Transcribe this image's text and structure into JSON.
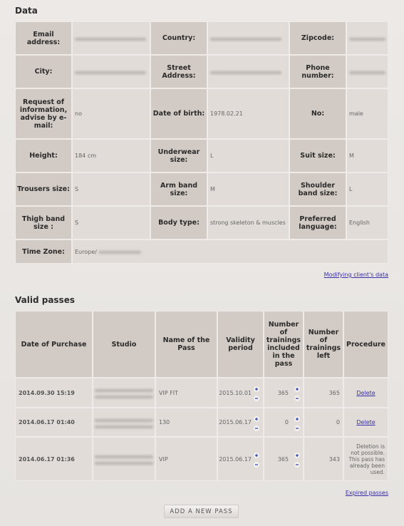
{
  "client_data": {
    "title": "Data",
    "rows": [
      [
        {
          "label": "Email address:"
        },
        {
          "label": "Country:"
        },
        {
          "label": "Zipcode:"
        }
      ],
      [
        {
          "label": "City:"
        },
        {
          "label": "Street Address:"
        },
        {
          "label": "Phone number:"
        }
      ],
      [
        {
          "label": "Request of information, advise by e-mail:",
          "value": "no"
        },
        {
          "label": "Date of birth:",
          "value": "1978.02.21"
        },
        {
          "label": "No:",
          "value": "male"
        }
      ],
      [
        {
          "label": "Height:",
          "value": "184 cm"
        },
        {
          "label": "Underwear size:",
          "value": "L"
        },
        {
          "label": "Suit size:",
          "value": "M"
        }
      ],
      [
        {
          "label": "Trousers size:",
          "value": "S"
        },
        {
          "label": "Arm band size:",
          "value": "M"
        },
        {
          "label": "Shoulder band size:",
          "value": "L"
        }
      ],
      [
        {
          "label": "Thigh band size :",
          "value": "S"
        },
        {
          "label": "Body type:",
          "value": "strong skeleton & muscles"
        },
        {
          "label": "Preferred language:",
          "value": "English"
        }
      ],
      [
        {
          "label": "Time Zone:",
          "value": "Europe/"
        }
      ]
    ],
    "modify_link": "Modifying client's data"
  },
  "passes": {
    "title": "Valid passes",
    "headers": [
      "Date of Purchase",
      "Studio",
      "Name of the Pass",
      "Validity period",
      "Number of trainings included in the pass",
      "Number of trainings left",
      "Procedure"
    ],
    "rows": [
      {
        "date": "2014.09.30 15:19",
        "pass": "VIP FIT",
        "validity": "2015.10.01",
        "included": 365,
        "left": 365,
        "procedure": "Delete"
      },
      {
        "date": "2014.06.17 01:40",
        "pass": "130",
        "validity": "2015.06.17",
        "included": 0,
        "left": 0,
        "procedure": "Delete"
      },
      {
        "date": "2014.06.17 01:36",
        "pass": "VIP",
        "validity": "2015.06.17",
        "included": 365,
        "left": 343,
        "procedure": "Deletion is not possible. This pass has already been used."
      }
    ],
    "expired_link": "Expired passes",
    "add_button": "ADD A NEW PASS"
  }
}
